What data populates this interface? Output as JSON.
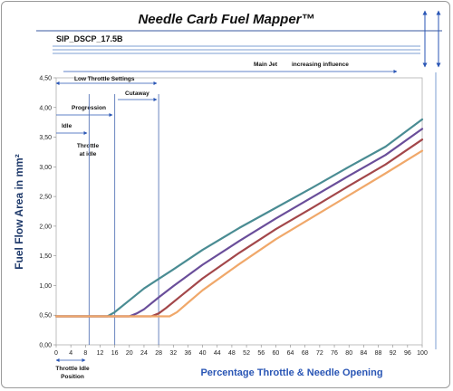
{
  "header": {
    "title": "Needle Carb Fuel Mapper™",
    "subtitle": "SIP_DSCP_17.5B"
  },
  "annotations": {
    "main_jet": "Main Jet",
    "increasing_influence": "increasing influence",
    "low_throttle": "Low Throttle Settings",
    "cutaway": "Cutaway",
    "progression": "Progression",
    "idle": "Idle",
    "throttle_at_idle_1": "Throttle",
    "throttle_at_idle_2": "at idle",
    "throttle_idle_position_1": "Throttle Idle",
    "throttle_idle_position_2": "Position"
  },
  "chart_data": {
    "type": "line",
    "xlabel": "Percentage Throttle & Needle Opening",
    "ylabel": "Fuel Flow Area in mm²",
    "xlim": [
      0,
      100
    ],
    "ylim": [
      0,
      4.5
    ],
    "xticks": [
      0,
      4,
      8,
      12,
      16,
      20,
      24,
      28,
      32,
      36,
      40,
      44,
      48,
      52,
      56,
      60,
      64,
      68,
      72,
      76,
      80,
      84,
      88,
      92,
      96,
      100
    ],
    "yticks": [
      "0,00",
      "0,50",
      "1,00",
      "1,50",
      "2,00",
      "2,50",
      "3,00",
      "3,50",
      "4,00",
      "4,50"
    ],
    "grid": false,
    "reference_lines_x": [
      9,
      16,
      28
    ],
    "series": [
      {
        "color": "#4a8c93",
        "x": [
          0,
          14,
          16,
          20,
          24,
          28,
          32,
          40,
          50,
          60,
          70,
          80,
          90,
          100
        ],
        "y": [
          0.48,
          0.48,
          0.55,
          0.75,
          0.95,
          1.11,
          1.27,
          1.6,
          1.97,
          2.31,
          2.65,
          3.0,
          3.34,
          3.8
        ]
      },
      {
        "color": "#6a4e9a",
        "x": [
          0,
          20,
          22,
          24,
          28,
          32,
          40,
          50,
          60,
          70,
          80,
          90,
          100
        ],
        "y": [
          0.48,
          0.48,
          0.53,
          0.6,
          0.8,
          0.99,
          1.35,
          1.75,
          2.13,
          2.49,
          2.85,
          3.2,
          3.64
        ]
      },
      {
        "color": "#a3474a",
        "x": [
          0,
          26,
          28,
          30,
          34,
          40,
          50,
          60,
          70,
          80,
          90,
          100
        ],
        "y": [
          0.48,
          0.48,
          0.53,
          0.62,
          0.82,
          1.12,
          1.55,
          1.95,
          2.31,
          2.68,
          3.04,
          3.46
        ]
      },
      {
        "color": "#f0a86a",
        "x": [
          0,
          31,
          33,
          36,
          40,
          50,
          60,
          70,
          80,
          90,
          100
        ],
        "y": [
          0.48,
          0.48,
          0.55,
          0.71,
          0.92,
          1.36,
          1.78,
          2.15,
          2.52,
          2.89,
          3.27
        ]
      }
    ]
  }
}
